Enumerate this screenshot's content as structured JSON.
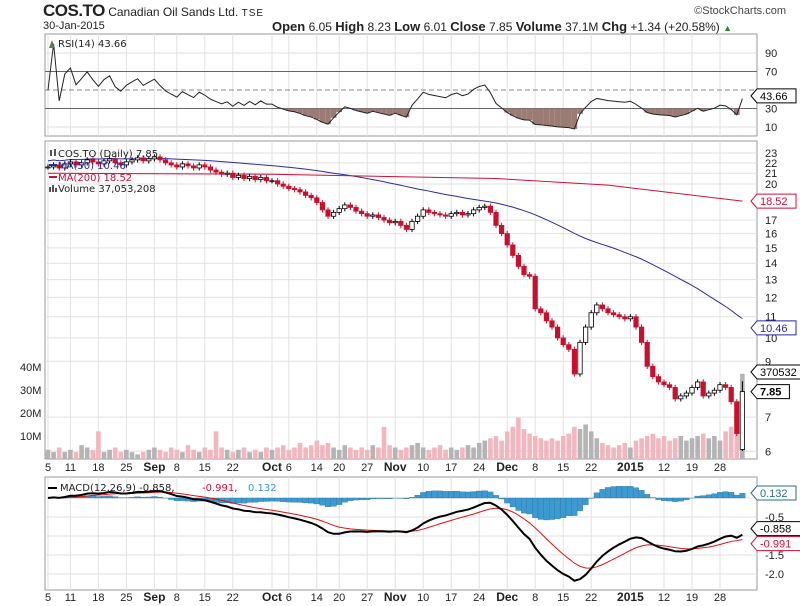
{
  "header": {
    "symbol": "COS.TO",
    "name": "Canadian Oil Sands Ltd.",
    "exchange": "TSE",
    "date": "30-Jan-2015",
    "copyright": "©StockCharts.com",
    "open_label": "Open",
    "open": "6.05",
    "high_label": "High",
    "high": "8.23",
    "low_label": "Low",
    "low": "6.01",
    "close_label": "Close",
    "close": "7.85",
    "volume_label": "Volume",
    "volume": "37.1M",
    "chg_label": "Chg",
    "chg": "+1.34 (+20.58%)",
    "chg_arrow": "▲"
  },
  "chart_data": {
    "type": "candlestick",
    "title": "COS.TO (Daily) 7.85",
    "scale": "log",
    "x_ticks": [
      {
        "i": 0,
        "label": "5"
      },
      {
        "i": 4,
        "label": "11"
      },
      {
        "i": 9,
        "label": "18"
      },
      {
        "i": 14,
        "label": "25"
      },
      {
        "i": 19,
        "label": "Sep",
        "bold": true
      },
      {
        "i": 23,
        "label": "8"
      },
      {
        "i": 28,
        "label": "15"
      },
      {
        "i": 33,
        "label": "22"
      },
      {
        "i": 40,
        "label": "Oct",
        "bold": true
      },
      {
        "i": 43,
        "label": "6"
      },
      {
        "i": 48,
        "label": "14"
      },
      {
        "i": 52,
        "label": "20"
      },
      {
        "i": 57,
        "label": "27"
      },
      {
        "i": 62,
        "label": "Nov",
        "bold": true
      },
      {
        "i": 67,
        "label": "10"
      },
      {
        "i": 72,
        "label": "17"
      },
      {
        "i": 77,
        "label": "24"
      },
      {
        "i": 82,
        "label": "Dec",
        "bold": true
      },
      {
        "i": 87,
        "label": "8"
      },
      {
        "i": 92,
        "label": "15"
      },
      {
        "i": 97,
        "label": "22"
      },
      {
        "i": 104,
        "label": "2015",
        "bold": true
      },
      {
        "i": 110,
        "label": "12"
      },
      {
        "i": 115,
        "label": "19"
      },
      {
        "i": 120,
        "label": "28"
      }
    ],
    "price_ticks": [
      "23",
      "22",
      "21",
      "20",
      "17",
      "16",
      "15",
      "14",
      "13",
      "12",
      "11",
      "10",
      "9",
      "7",
      "6"
    ],
    "volume_ticks": [
      "10M",
      "20M",
      "30M",
      "40M"
    ],
    "rsi_ticks": [
      "90",
      "70",
      "30",
      "10"
    ],
    "macd_ticks": [
      "-0.5",
      "-1.5",
      "-2.0"
    ],
    "closes": [
      21.6,
      21.8,
      21.5,
      21.9,
      22.1,
      21.8,
      22.0,
      22.3,
      22.1,
      21.9,
      22.2,
      22.4,
      22.0,
      21.8,
      22.1,
      22.3,
      22.5,
      22.2,
      22.4,
      22.6,
      22.3,
      22.0,
      21.8,
      21.6,
      21.9,
      21.7,
      21.5,
      21.8,
      21.6,
      21.3,
      21.1,
      20.9,
      21.0,
      20.6,
      20.8,
      20.5,
      20.7,
      20.4,
      20.6,
      20.3,
      20.3,
      20.0,
      19.8,
      19.6,
      19.5,
      19.3,
      19.0,
      18.8,
      18.4,
      17.8,
      17.3,
      17.6,
      17.9,
      18.2,
      18.0,
      17.7,
      17.5,
      17.3,
      17.4,
      17.2,
      17.0,
      16.8,
      16.9,
      16.6,
      16.3,
      16.9,
      17.3,
      17.8,
      17.6,
      17.5,
      17.4,
      17.3,
      17.5,
      17.6,
      17.4,
      17.5,
      17.8,
      18.0,
      18.1,
      17.6,
      16.6,
      16.0,
      15.2,
      14.5,
      13.8,
      13.3,
      13.2,
      11.4,
      11.2,
      10.8,
      10.5,
      10.0,
      9.7,
      9.5,
      8.5,
      9.8,
      10.5,
      11.2,
      11.6,
      11.4,
      11.2,
      11.1,
      11.0,
      10.9,
      11.0,
      10.5,
      9.8,
      8.8,
      8.4,
      8.2,
      8.1,
      8.0,
      7.6,
      7.7,
      7.8,
      8.0,
      8.2,
      7.7,
      7.8,
      7.9,
      8.1,
      8.0,
      7.5,
      6.5,
      7.85
    ],
    "volumes_m": [
      4,
      3,
      5,
      3,
      4,
      3,
      6,
      5,
      4,
      12,
      3,
      4,
      5,
      3,
      4,
      3,
      2,
      3,
      4,
      5,
      4,
      3,
      5,
      4,
      3,
      6,
      4,
      3,
      5,
      4,
      12,
      5,
      4,
      3,
      4,
      5,
      3,
      4,
      3,
      5,
      4,
      5,
      6,
      4,
      5,
      7,
      5,
      6,
      8,
      6,
      7,
      5,
      4,
      6,
      5,
      4,
      5,
      4,
      6,
      5,
      14,
      6,
      5,
      4,
      5,
      6,
      7,
      5,
      4,
      5,
      6,
      4,
      5,
      4,
      5,
      6,
      5,
      7,
      8,
      9,
      10,
      8,
      12,
      14,
      18,
      13,
      11,
      10,
      9,
      8,
      9,
      8,
      10,
      11,
      14,
      13,
      15,
      12,
      9,
      7,
      6,
      5,
      6,
      7,
      5,
      8,
      9,
      10,
      11,
      9,
      10,
      8,
      9,
      10,
      8,
      9,
      10,
      11,
      9,
      10,
      8,
      12,
      14,
      16,
      37.05
    ],
    "last_ohlc": {
      "open": 6.05,
      "high": 8.23,
      "low": 6.01,
      "close": 7.85
    },
    "ma200_points": [
      {
        "i": 0,
        "v": 21.0
      },
      {
        "i": 40,
        "v": 20.9
      },
      {
        "i": 80,
        "v": 20.5
      },
      {
        "i": 100,
        "v": 19.9
      },
      {
        "i": 124,
        "v": 18.52
      }
    ],
    "legend": {
      "price": "COS.TO (Daily) 7.85",
      "ma50": "MA(50) 10.46",
      "ma200": "MA(200) 18.52",
      "volume": "Volume 37,053,208",
      "rsi": "RSI(14) 43.66",
      "macd_name": "MACD(12,26,9) -0.858,",
      "macd_signal": "-0.991,",
      "macd_hist": "0.132"
    },
    "tags": {
      "rsi": "43.66",
      "ma200": "18.52",
      "ma50": "10.46",
      "volume": "370532",
      "close": "7.85",
      "macd_hist": "0.132",
      "macd": "-0.858",
      "macd_signal": "-0.991"
    },
    "colors": {
      "up": "#000000",
      "down": "#c8102e",
      "ma50": "#2a2aa0",
      "ma200": "#d0103a",
      "vol_up": "#b4b4b4",
      "vol_down": "#f2b6bf",
      "hist": "#3c9ad0",
      "rsi_fill": "#9b7b74"
    }
  }
}
